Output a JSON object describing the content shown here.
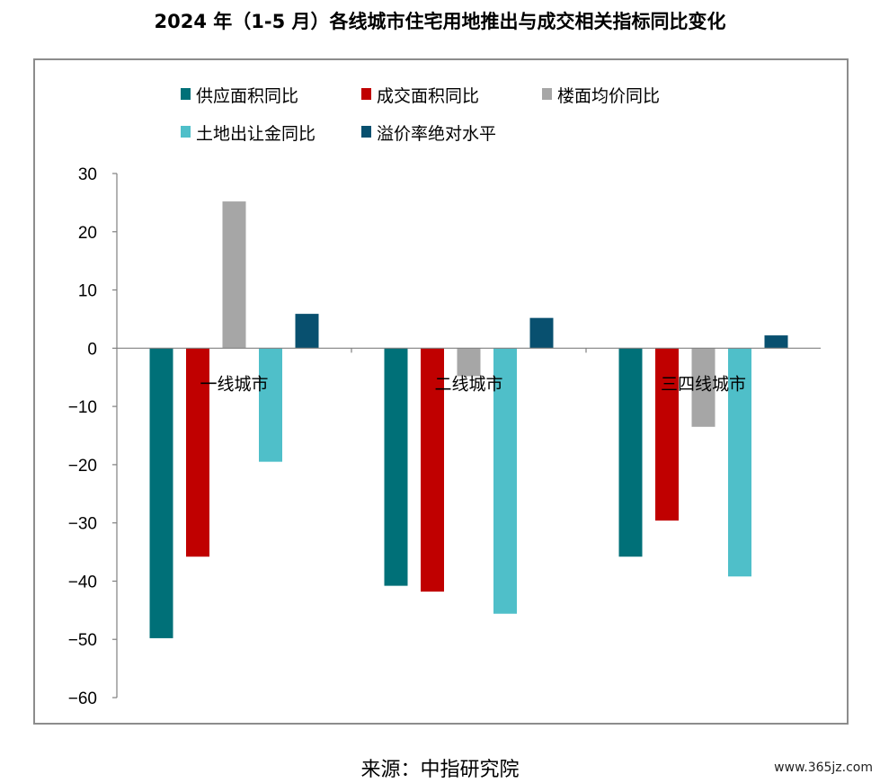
{
  "title": "2024 年（1-5 月）各线城市住宅用地推出与成交相关指标同比变化",
  "source": "来源：中指研究院",
  "watermark": "www.365jz.com",
  "chart_data": {
    "type": "bar",
    "categories": [
      "一线城市",
      "二线城市",
      "三四线城市"
    ],
    "series": [
      {
        "name": "供应面积同比",
        "color": "#007078",
        "values": [
          -49.8,
          -40.8,
          -35.8
        ]
      },
      {
        "name": "成交面积同比",
        "color": "#c00000",
        "values": [
          -35.8,
          -41.8,
          -29.6
        ]
      },
      {
        "name": "楼面均价同比",
        "color": "#a6a6a6",
        "values": [
          25.2,
          -4.8,
          -13.5
        ]
      },
      {
        "name": "土地出让金同比",
        "color": "#4fbfc9",
        "values": [
          -19.5,
          -45.6,
          -39.2
        ]
      },
      {
        "name": "溢价率绝对水平",
        "color": "#08506f",
        "values": [
          5.9,
          5.2,
          2.2
        ]
      }
    ],
    "ylim": [
      -60,
      30
    ],
    "yticks": [
      30,
      20,
      10,
      0,
      -10,
      -20,
      -30,
      -40,
      -50,
      -60
    ],
    "ytick_labels": [
      "30",
      "20",
      "10",
      "0",
      "−10",
      "−20",
      "−30",
      "−40",
      "−50",
      "−60"
    ],
    "legend_position": "top",
    "grid": false
  }
}
